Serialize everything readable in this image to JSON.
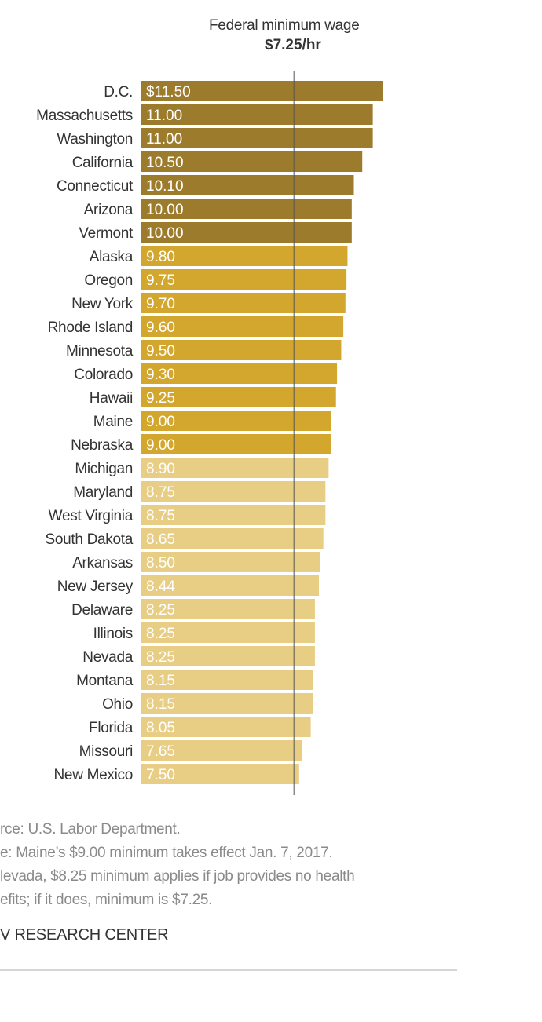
{
  "chart_data": {
    "type": "bar",
    "orientation": "horizontal",
    "title": "Federal minimum wage",
    "reference_line": {
      "label": "$7.25/hr",
      "value": 7.25
    },
    "categories": [
      "D.C.",
      "Massachusetts",
      "Washington",
      "California",
      "Connecticut",
      "Arizona",
      "Vermont",
      "Alaska",
      "Oregon",
      "New York",
      "Rhode Island",
      "Minnesota",
      "Colorado",
      "Hawaii",
      "Maine",
      "Nebraska",
      "Michigan",
      "Maryland",
      "West Virginia",
      "South Dakota",
      "Arkansas",
      "New Jersey",
      "Delaware",
      "Illinois",
      "Nevada",
      "Montana",
      "Ohio",
      "Florida",
      "Missouri",
      "New Mexico"
    ],
    "values": [
      11.5,
      11.0,
      11.0,
      10.5,
      10.1,
      10.0,
      10.0,
      9.8,
      9.75,
      9.7,
      9.6,
      9.5,
      9.3,
      9.25,
      9.0,
      9.0,
      8.9,
      8.75,
      8.75,
      8.65,
      8.5,
      8.44,
      8.25,
      8.25,
      8.25,
      8.15,
      8.15,
      8.05,
      7.65,
      7.5
    ],
    "labels": [
      "$11.50",
      "11.00",
      "11.00",
      "10.50",
      "10.10",
      "10.00",
      "10.00",
      "9.80",
      "9.75",
      "9.70",
      "9.60",
      "9.50",
      "9.30",
      "9.25",
      "9.00",
      "9.00",
      "8.90",
      "8.75",
      "8.75",
      "8.65",
      "8.50",
      "8.44",
      "8.25",
      "8.25",
      "8.25",
      "8.15",
      "8.15",
      "8.05",
      "7.65",
      "7.50"
    ],
    "xlim": [
      0,
      11.5
    ],
    "tiers": [
      {
        "min": 10.0,
        "color": "#9c7b2c"
      },
      {
        "min": 9.0,
        "color": "#d3a72e"
      },
      {
        "min": 0,
        "color": "#e8cd85"
      }
    ],
    "grid": false
  },
  "footer": {
    "source": "rce: U.S. Labor Department.",
    "note1": "e: Maine’s $9.00 minimum takes effect Jan. 7, 2017.",
    "note2": "levada, $8.25 minimum applies if job provides no health",
    "note3": "efits; if it does, minimum is $7.25.",
    "brand": "V RESEARCH CENTER"
  }
}
